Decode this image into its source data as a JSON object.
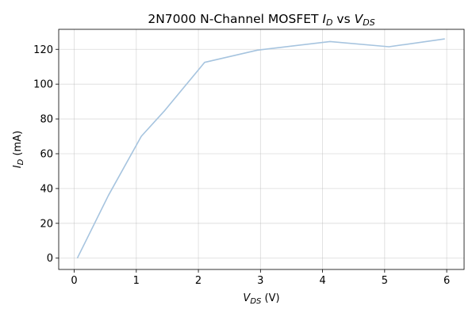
{
  "chart_data": {
    "type": "line",
    "title": {
      "prefix": "2N7000 N-Channel MOSFET ",
      "y_symbol": "I",
      "y_subscript": "D",
      "middle": " vs ",
      "x_symbol": "V",
      "x_subscript": "DS"
    },
    "xlabel": {
      "symbol": "V",
      "subscript": "DS",
      "unit": " (V)"
    },
    "ylabel": {
      "symbol": "I",
      "subscript": "D",
      "unit": " (mA)"
    },
    "xlim": [
      -0.25,
      6.28
    ],
    "ylim": [
      -6.5,
      131.5
    ],
    "xticks": [
      0,
      1,
      2,
      3,
      4,
      5,
      6
    ],
    "yticks": [
      0,
      20,
      40,
      60,
      80,
      100,
      120
    ],
    "grid": true,
    "legend": "none",
    "series": [
      {
        "color": "#a6c4df",
        "x": [
          0.05,
          0.55,
          1.08,
          1.45,
          2.1,
          2.95,
          4.12,
          5.07,
          5.97
        ],
        "y": [
          0.0,
          36.0,
          70.0,
          84.5,
          112.5,
          119.5,
          124.5,
          121.5,
          126.0
        ]
      }
    ]
  }
}
